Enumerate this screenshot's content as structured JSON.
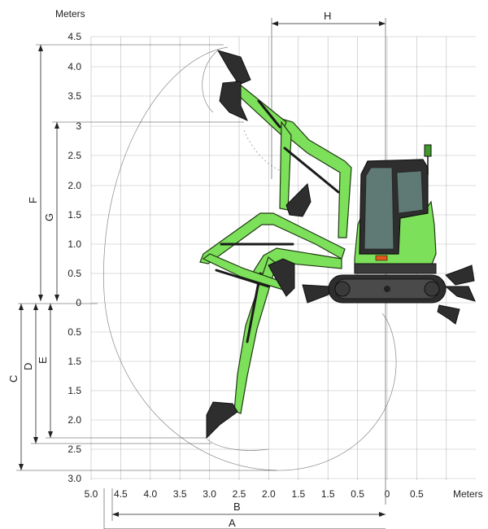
{
  "units_label": "Meters",
  "x_axis_label": "Meters",
  "y_ticks_up": [
    "4.5",
    "4.0",
    "3.5",
    "3",
    "2.5",
    "2.0",
    "1.5",
    "1.0",
    "0.5",
    "0"
  ],
  "y_ticks_down": [
    "0.5",
    "1.5",
    "1.5",
    "2.0",
    "2.5",
    "3.0"
  ],
  "x_ticks": [
    "5.0",
    "4.5",
    "4.0",
    "3.5",
    "3.0",
    "2.5",
    "2.0",
    "1.5",
    "1.5",
    "0.5",
    "0",
    "0.5"
  ],
  "dimensions": {
    "A": "A",
    "B": "B",
    "C": "C",
    "D": "D",
    "E": "E",
    "F": "F",
    "G": "G",
    "H": "H"
  },
  "colors": {
    "machine_green": "#7de05a",
    "outline": "#1f3a12",
    "track": "#2e2e2e",
    "grid": "#bbbbbb"
  }
}
